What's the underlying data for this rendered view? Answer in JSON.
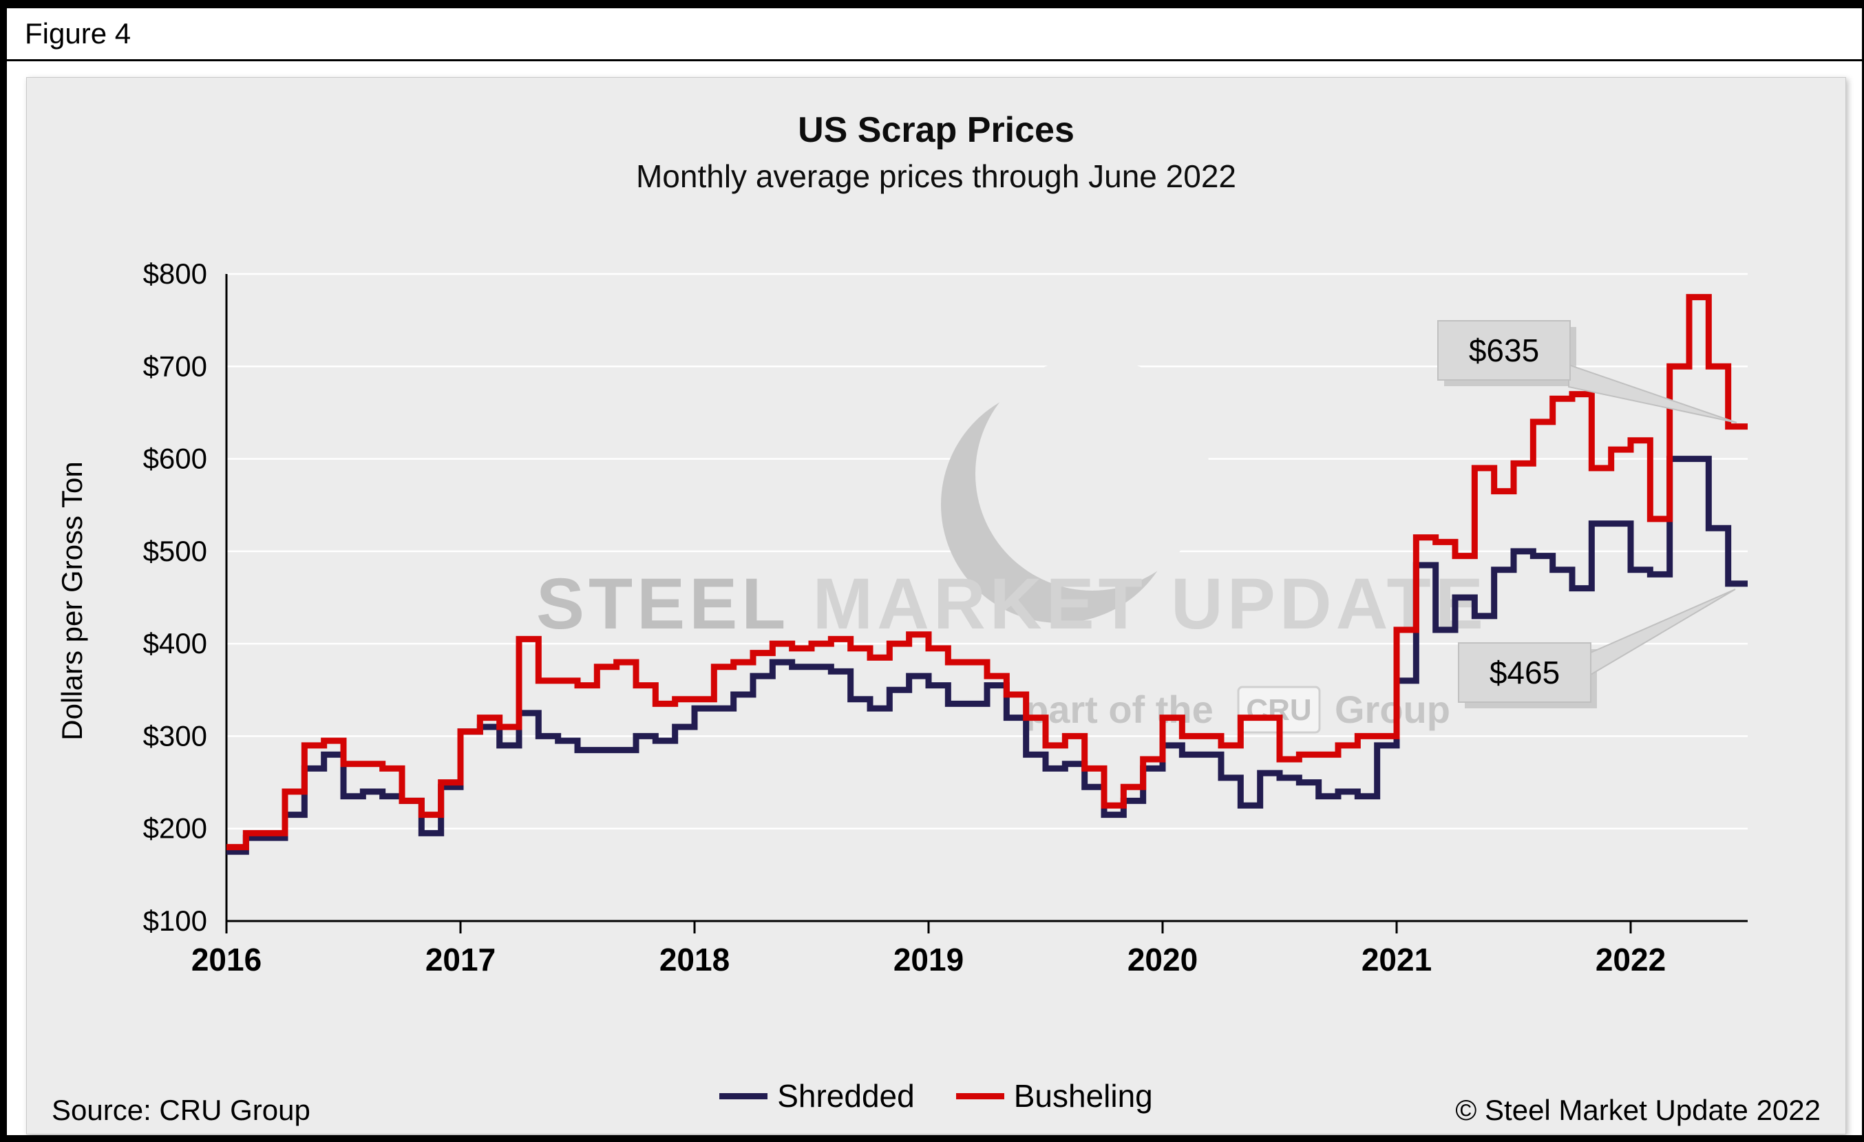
{
  "figure_label": "Figure 4",
  "chart_data": {
    "type": "line",
    "title": "US Scrap Prices",
    "subtitle": "Monthly average prices through June 2022",
    "ylabel": "Dollars per  Gross Ton",
    "ylim": [
      100,
      800
    ],
    "ytick_step": 100,
    "ytick_prefix": "$",
    "grid": "horizontal-white",
    "legend_position": "bottom",
    "start_month": "2016-01",
    "end_month": "2022-06",
    "year_ticks": [
      "2016",
      "2017",
      "2018",
      "2019",
      "2020",
      "2021",
      "2022"
    ],
    "series": [
      {
        "name": "Shredded",
        "color": "#221c50",
        "values": [
          175,
          190,
          190,
          215,
          265,
          280,
          235,
          240,
          235,
          230,
          195,
          245,
          305,
          310,
          290,
          325,
          300,
          295,
          285,
          285,
          285,
          300,
          295,
          310,
          330,
          330,
          345,
          365,
          380,
          375,
          375,
          370,
          340,
          330,
          350,
          365,
          355,
          335,
          335,
          355,
          320,
          280,
          265,
          270,
          245,
          215,
          230,
          265,
          290,
          280,
          280,
          255,
          225,
          260,
          255,
          250,
          235,
          240,
          235,
          290,
          360,
          485,
          415,
          450,
          430,
          480,
          500,
          495,
          480,
          460,
          530,
          530,
          480,
          475,
          600,
          600,
          525,
          465
        ]
      },
      {
        "name": "Busheling",
        "color": "#d40404",
        "values": [
          180,
          195,
          195,
          240,
          290,
          295,
          270,
          270,
          265,
          230,
          215,
          250,
          305,
          320,
          310,
          405,
          360,
          360,
          355,
          375,
          380,
          355,
          335,
          340,
          340,
          375,
          380,
          390,
          400,
          395,
          400,
          405,
          395,
          385,
          400,
          410,
          395,
          380,
          380,
          365,
          345,
          320,
          290,
          300,
          265,
          225,
          245,
          275,
          320,
          300,
          300,
          290,
          320,
          320,
          275,
          280,
          280,
          290,
          300,
          300,
          415,
          515,
          510,
          495,
          590,
          565,
          595,
          640,
          665,
          670,
          590,
          610,
          620,
          535,
          700,
          775,
          700,
          635
        ]
      }
    ],
    "annotations": [
      {
        "label": "$635",
        "series": "Busheling",
        "value": 635,
        "month": "2022-06"
      },
      {
        "label": "$465",
        "series": "Shredded",
        "value": 465,
        "month": "2022-06"
      }
    ]
  },
  "watermark": {
    "line1_strong": "STEEL",
    "line1_rest": " MARKET UPDATE",
    "line2_pre": "part of the",
    "line2_logo": "CRU",
    "line2_post": "Group"
  },
  "footer": {
    "source": "Source: CRU Group",
    "copyright": "© Steel Market Update 2022"
  },
  "colors": {
    "panel_bg": "#ececec",
    "gridline": "#ffffff",
    "shredded": "#221c50",
    "busheling": "#d40404",
    "callout_bg": "#d9d9d9",
    "callout_border": "#c0c0c0",
    "watermark_gray": "#c9c9c9"
  }
}
